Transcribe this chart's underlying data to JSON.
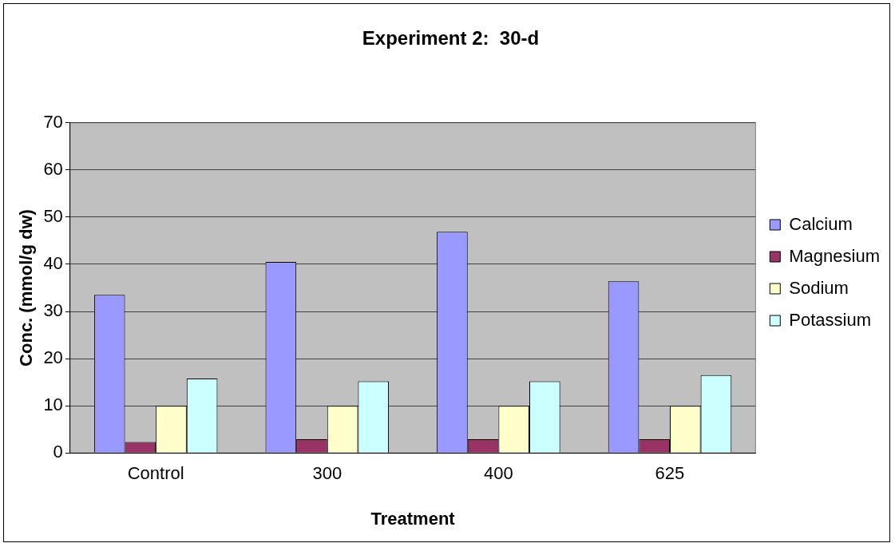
{
  "chart_data": {
    "type": "bar",
    "title": "Experiment 2:  30-d",
    "xlabel": "Treatment",
    "ylabel": "Conc. (mmol/g dw)",
    "categories": [
      "Control",
      "300",
      "400",
      "625"
    ],
    "series": [
      {
        "name": "Calcium",
        "color": "#9999ff",
        "values": [
          33.5,
          40.5,
          46.9,
          36.4
        ]
      },
      {
        "name": "Magnesium",
        "color": "#993366",
        "values": [
          2.3,
          2.9,
          2.9,
          2.9
        ]
      },
      {
        "name": "Sodium",
        "color": "#ffffcc",
        "values": [
          10,
          10,
          10,
          10
        ]
      },
      {
        "name": "Potassium",
        "color": "#ccffff",
        "values": [
          15.8,
          15.2,
          15.2,
          16.5
        ]
      }
    ],
    "ylim": [
      0,
      70
    ],
    "yticks": [
      0,
      10,
      20,
      30,
      40,
      50,
      60,
      70
    ],
    "grid": "y",
    "legend": "right"
  }
}
